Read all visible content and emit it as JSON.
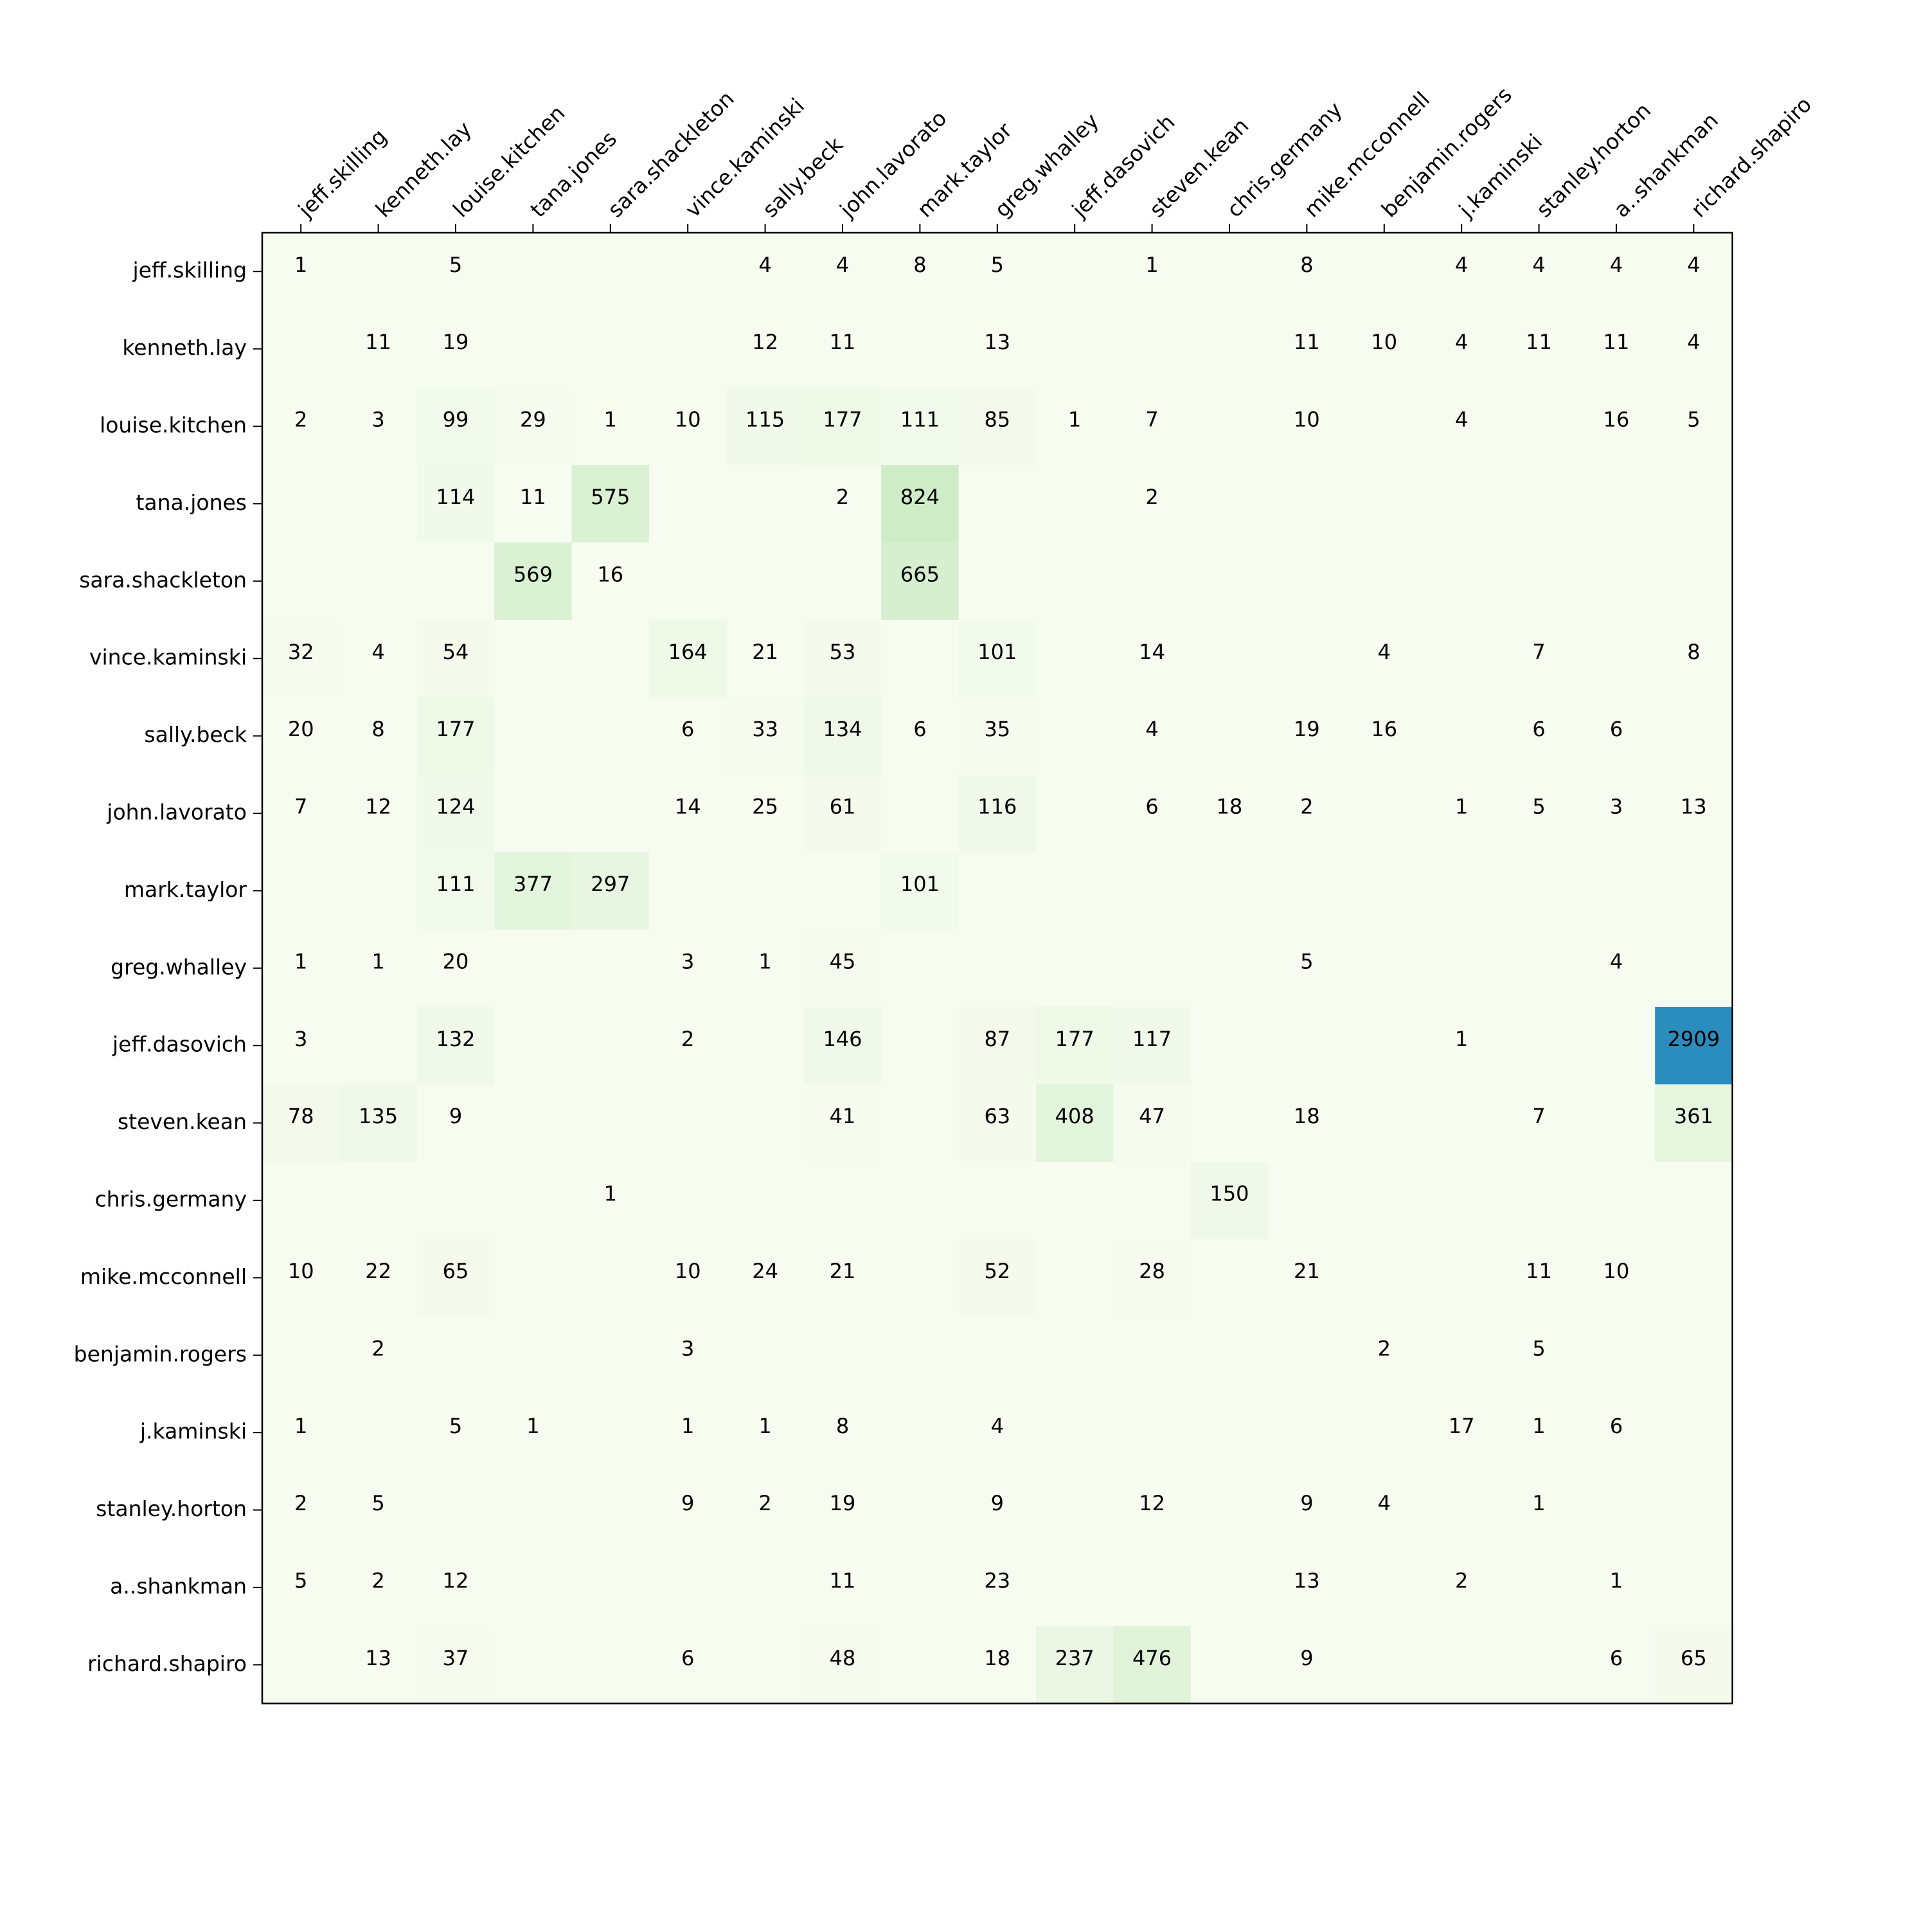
{
  "chart_data": {
    "type": "heatmap",
    "title": "",
    "xlabel": "",
    "ylabel": "",
    "x_tick_position": "top",
    "x_tick_rotation": "45 degrees",
    "blank_cell_meaning": "zero / no value printed",
    "colormap": {
      "low": "#f7fcf0",
      "mid": "#ccebc5",
      "high": "#2b8cbe",
      "range": [
        0,
        2909
      ]
    },
    "x_labels": [
      "jeff.skilling",
      "kenneth.lay",
      "louise.kitchen",
      "tana.jones",
      "sara.shackleton",
      "vince.kaminski",
      "sally.beck",
      "john.lavorato",
      "mark.taylor",
      "greg.whalley",
      "jeff.dasovich",
      "steven.kean",
      "chris.germany",
      "mike.mcconnell",
      "benjamin.rogers",
      "j.kaminski",
      "stanley.horton",
      "a..shankman",
      "richard.shapiro"
    ],
    "y_labels": [
      "jeff.skilling",
      "kenneth.lay",
      "louise.kitchen",
      "tana.jones",
      "sara.shackleton",
      "vince.kaminski",
      "sally.beck",
      "john.lavorato",
      "mark.taylor",
      "greg.whalley",
      "jeff.dasovich",
      "steven.kean",
      "chris.germany",
      "mike.mcconnell",
      "benjamin.rogers",
      "j.kaminski",
      "stanley.horton",
      "a..shankman",
      "richard.shapiro"
    ],
    "values": [
      [
        1,
        null,
        5,
        null,
        null,
        null,
        4,
        4,
        8,
        5,
        null,
        1,
        null,
        8,
        null,
        4,
        4,
        4,
        4
      ],
      [
        null,
        11,
        19,
        null,
        null,
        null,
        12,
        11,
        null,
        13,
        null,
        null,
        null,
        11,
        10,
        4,
        11,
        11,
        4
      ],
      [
        2,
        3,
        99,
        29,
        1,
        10,
        115,
        177,
        111,
        85,
        1,
        7,
        null,
        10,
        null,
        4,
        null,
        16,
        5
      ],
      [
        null,
        null,
        114,
        11,
        575,
        null,
        null,
        2,
        824,
        null,
        null,
        2,
        null,
        null,
        null,
        null,
        null,
        null,
        null
      ],
      [
        null,
        null,
        null,
        569,
        16,
        null,
        null,
        null,
        665,
        null,
        null,
        null,
        null,
        null,
        null,
        null,
        null,
        null,
        null
      ],
      [
        32,
        4,
        54,
        null,
        null,
        164,
        21,
        53,
        null,
        101,
        null,
        14,
        null,
        null,
        4,
        null,
        7,
        null,
        8
      ],
      [
        20,
        8,
        177,
        null,
        null,
        6,
        33,
        134,
        6,
        35,
        null,
        4,
        null,
        19,
        16,
        null,
        6,
        6,
        null
      ],
      [
        7,
        12,
        124,
        null,
        null,
        14,
        25,
        61,
        null,
        116,
        null,
        6,
        18,
        2,
        null,
        1,
        5,
        3,
        13
      ],
      [
        null,
        null,
        111,
        377,
        297,
        null,
        null,
        null,
        101,
        null,
        null,
        null,
        null,
        null,
        null,
        null,
        null,
        null,
        null
      ],
      [
        1,
        1,
        20,
        null,
        null,
        3,
        1,
        45,
        null,
        null,
        null,
        null,
        null,
        5,
        null,
        null,
        null,
        4,
        null
      ],
      [
        3,
        null,
        132,
        null,
        null,
        2,
        null,
        146,
        null,
        87,
        177,
        117,
        null,
        null,
        null,
        1,
        null,
        null,
        2909
      ],
      [
        78,
        135,
        9,
        null,
        null,
        null,
        null,
        41,
        null,
        63,
        408,
        47,
        null,
        18,
        null,
        null,
        7,
        null,
        361
      ],
      [
        null,
        null,
        null,
        null,
        1,
        null,
        null,
        null,
        null,
        null,
        null,
        null,
        150,
        null,
        null,
        null,
        null,
        null,
        null
      ],
      [
        10,
        22,
        65,
        null,
        null,
        10,
        24,
        21,
        null,
        52,
        null,
        28,
        null,
        21,
        null,
        null,
        11,
        10,
        null
      ],
      [
        null,
        2,
        null,
        null,
        null,
        3,
        null,
        null,
        null,
        null,
        null,
        null,
        null,
        null,
        2,
        null,
        5,
        null,
        null
      ],
      [
        1,
        null,
        5,
        1,
        null,
        1,
        1,
        8,
        null,
        4,
        null,
        null,
        null,
        null,
        null,
        17,
        1,
        6,
        null
      ],
      [
        2,
        5,
        null,
        null,
        null,
        9,
        2,
        19,
        null,
        9,
        null,
        12,
        null,
        9,
        4,
        null,
        1,
        null,
        null
      ],
      [
        5,
        2,
        12,
        null,
        null,
        null,
        null,
        11,
        null,
        23,
        null,
        null,
        null,
        13,
        null,
        2,
        null,
        1,
        null
      ],
      [
        null,
        13,
        37,
        null,
        null,
        6,
        null,
        48,
        null,
        18,
        237,
        476,
        null,
        9,
        null,
        null,
        null,
        6,
        65
      ]
    ]
  }
}
